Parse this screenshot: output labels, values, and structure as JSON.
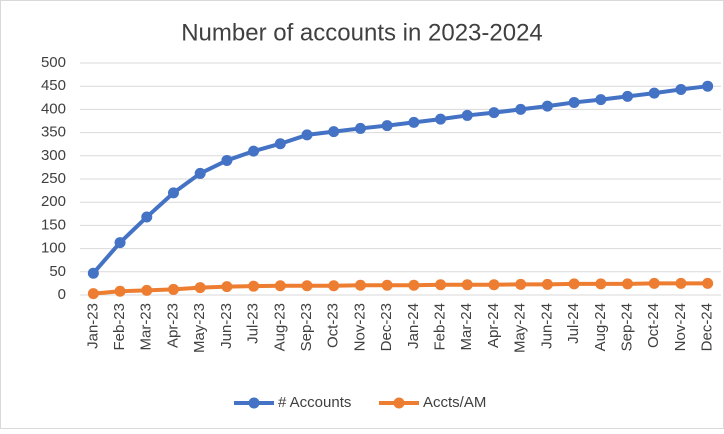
{
  "chart_data": {
    "type": "line",
    "title": "Number of accounts in 2023-2024",
    "categories": [
      "Jan-23",
      "Feb-23",
      "Mar-23",
      "Apr-23",
      "May-23",
      "Jun-23",
      "Jul-23",
      "Aug-23",
      "Sep-23",
      "Oct-23",
      "Nov-23",
      "Dec-23",
      "Jan-24",
      "Feb-24",
      "Mar-24",
      "Apr-24",
      "May-24",
      "Jun-24",
      "Jul-24",
      "Aug-24",
      "Sep-24",
      "Oct-24",
      "Nov-24",
      "Dec-24"
    ],
    "series": [
      {
        "name": "# Accounts",
        "color": "#4472c4",
        "values": [
          47,
          113,
          168,
          220,
          262,
          290,
          310,
          326,
          345,
          352,
          359,
          365,
          372,
          379,
          387,
          393,
          400,
          407,
          415,
          421,
          428,
          435,
          443,
          450
        ]
      },
      {
        "name": "Accts/AM",
        "color": "#ed7d31",
        "values": [
          3,
          8,
          10,
          12,
          16,
          18,
          19,
          20,
          20,
          20,
          21,
          21,
          21,
          22,
          22,
          22,
          23,
          23,
          24,
          24,
          24,
          25,
          25,
          25
        ]
      }
    ],
    "ylim": [
      0,
      500
    ],
    "yticks": [
      0,
      50,
      100,
      150,
      200,
      250,
      300,
      350,
      400,
      450,
      500
    ],
    "grid": true,
    "legend": "bottom"
  }
}
